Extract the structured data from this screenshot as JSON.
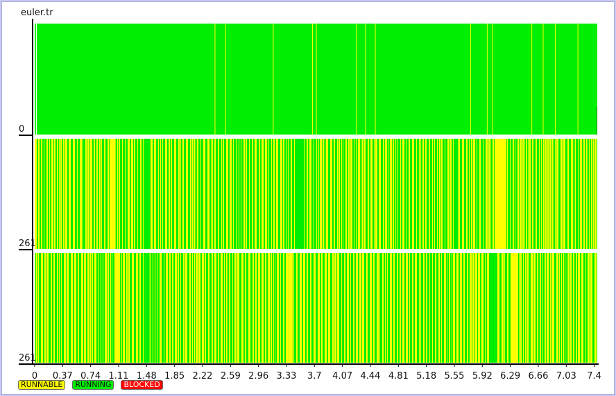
{
  "window": {
    "title": "euler.tr"
  },
  "colors": {
    "runnable": "#ffff00",
    "running": "#00ee00",
    "blocked": "#ff0000",
    "axis": "#000000",
    "separator": "#ffffff"
  },
  "legend": [
    {
      "key": "runnable",
      "label": "RUNNABLE",
      "color": "#ffff00"
    },
    {
      "key": "running",
      "label": "RUNNING",
      "color": "#00ee00"
    },
    {
      "key": "blocked",
      "label": "BLOCKED",
      "color": "#ff0000"
    }
  ],
  "chart_data": {
    "type": "timeline",
    "title": "euler.tr",
    "x_ticks": [
      "0",
      "0.37",
      "0.74",
      "1.11",
      "1.48",
      "1.85",
      "2.22",
      "2.59",
      "2.96",
      "3.33",
      "3.7",
      "4.07",
      "4.44",
      "4.81",
      "5.18",
      "5.55",
      "5.92",
      "6.29",
      "6.66",
      "7.03",
      "7.4"
    ],
    "x_range": [
      0,
      7.44
    ],
    "rows": [
      {
        "label": "0",
        "base_state": "running",
        "runnable_intervals": [
          [
            2.38,
            2.39
          ],
          [
            2.52,
            2.53
          ],
          [
            3.15,
            3.16
          ],
          [
            3.67,
            3.68
          ],
          [
            3.72,
            3.73
          ],
          [
            4.25,
            4.26
          ],
          [
            4.37,
            4.38
          ],
          [
            4.5,
            4.51
          ],
          [
            5.76,
            5.77
          ],
          [
            5.98,
            5.99
          ],
          [
            6.05,
            6.06
          ],
          [
            6.57,
            6.58
          ],
          [
            6.72,
            6.73
          ],
          [
            6.88,
            6.89
          ],
          [
            7.18,
            7.19
          ]
        ]
      },
      {
        "label": "261",
        "base_state": "interleaved",
        "solid_runnable": [
          [
            0.99,
            1.07
          ],
          [
            6.11,
            6.22
          ]
        ],
        "solid_running": [
          [
            1.44,
            1.53
          ],
          [
            3.44,
            3.55
          ],
          [
            5.54,
            5.6
          ]
        ]
      },
      {
        "label": "261",
        "base_state": "interleaved",
        "solid_runnable": [
          [
            1.07,
            1.13
          ],
          [
            3.35,
            3.4
          ],
          [
            6.31,
            6.37
          ]
        ],
        "solid_running": [
          [
            1.47,
            1.52
          ],
          [
            6.02,
            6.1
          ]
        ]
      }
    ]
  }
}
